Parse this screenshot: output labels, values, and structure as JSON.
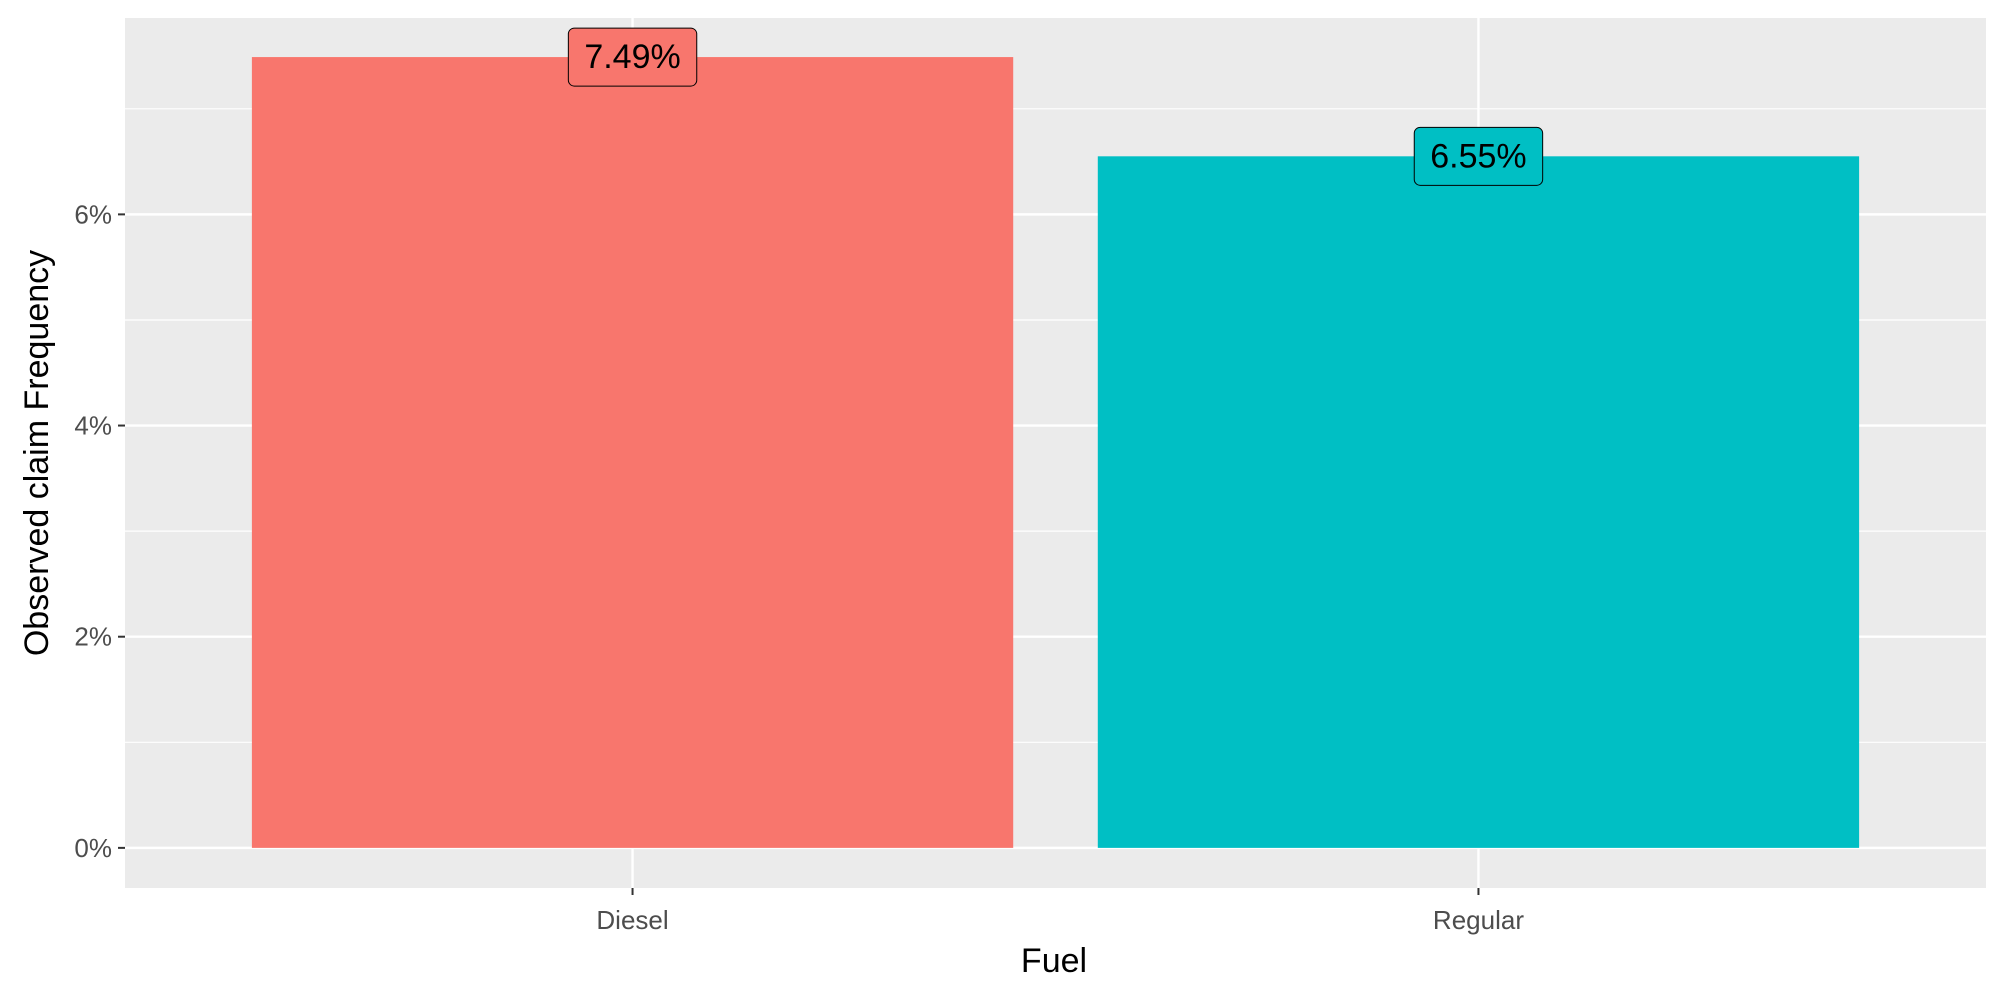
{
  "chart_data": {
    "type": "bar",
    "categories": [
      "Diesel",
      "Regular"
    ],
    "values": [
      7.49,
      6.55
    ],
    "data_labels": [
      "7.49%",
      "6.55%"
    ],
    "colors": [
      "#F8766D",
      "#00BFC4"
    ],
    "xlabel": "Fuel",
    "ylabel": "Observed claim Frequency",
    "ylim": [
      -0.38,
      7.86
    ],
    "yticks": [
      0,
      2,
      4,
      6
    ],
    "ytick_labels": [
      "0%",
      "2%",
      "4%",
      "6%"
    ],
    "grid": true,
    "legend": "none",
    "panel_background": "#EBEBEB",
    "grid_color": "#FFFFFF"
  }
}
